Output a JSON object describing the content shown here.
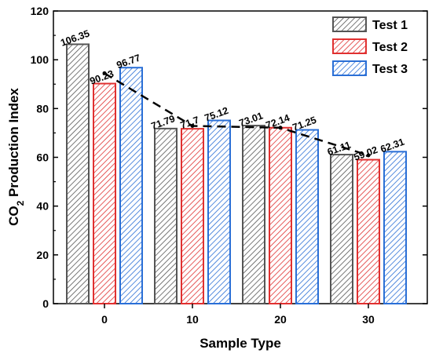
{
  "chart_data": {
    "type": "bar",
    "title": "",
    "xlabel": "Sample Type",
    "ylabel": {
      "prefix": "CO",
      "subscript": "2",
      "suffix": " Production Index"
    },
    "categories": [
      "0",
      "10",
      "20",
      "30"
    ],
    "yticks": [
      "0",
      "20",
      "40",
      "60",
      "80",
      "100",
      "120"
    ],
    "ylim": [
      0,
      120
    ],
    "series": [
      {
        "name": "Test 1",
        "color": "#555555",
        "values": [
          106.35,
          71.79,
          73.01,
          61.11
        ],
        "labels": [
          "106.35",
          "71.79",
          "73.01",
          "61.11"
        ]
      },
      {
        "name": "Test 2",
        "color": "#e03030",
        "values": [
          90.23,
          71.7,
          72.14,
          59.02
        ],
        "labels": [
          "90.23",
          "71.7",
          "72.14",
          "59.02"
        ]
      },
      {
        "name": "Test 3",
        "color": "#2a6fd6",
        "values": [
          96.77,
          75.12,
          71.25,
          62.31
        ],
        "labels": [
          "96.77",
          "75.12",
          "71.25",
          "62.31"
        ]
      }
    ],
    "trendline": {
      "style": "dashed",
      "color": "#000000",
      "marker_at_series": "Test 2",
      "values": [
        94.45,
        72.87,
        72.13,
        60.81
      ]
    },
    "legend_position": "top-right",
    "hatch": "diagonal"
  }
}
